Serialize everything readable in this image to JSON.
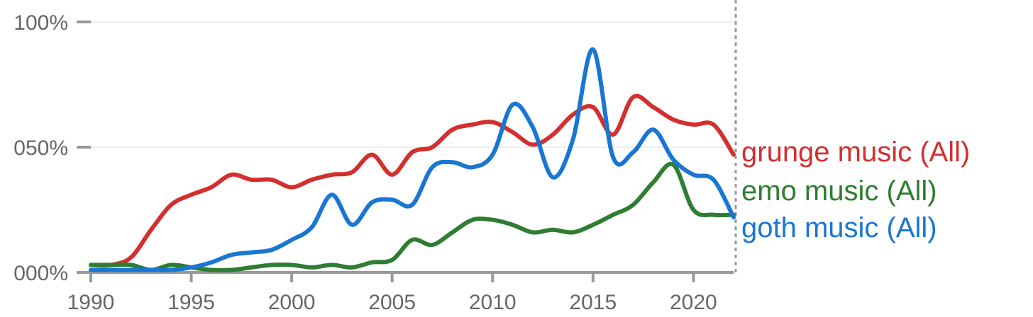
{
  "chart_data": {
    "type": "line",
    "title": "",
    "xlabel": "",
    "ylabel": "",
    "xlim": [
      1990,
      2022
    ],
    "ylim": [
      0,
      100
    ],
    "grid": true,
    "legend": "right (labels at line ends)",
    "x_ticks": [
      "1990",
      "1995",
      "2000",
      "2005",
      "2010",
      "2015",
      "2020"
    ],
    "y_ticks": [
      {
        "value": 0,
        "label": "000%"
      },
      {
        "value": 50,
        "label": "050%"
      },
      {
        "value": 100,
        "label": "100%"
      }
    ],
    "series": [
      {
        "name": "grunge music (All)",
        "color": "#d32f2f",
        "points": [
          [
            1990,
            3
          ],
          [
            1991,
            3
          ],
          [
            1992,
            6
          ],
          [
            1993,
            17
          ],
          [
            1994,
            27
          ],
          [
            1995,
            31
          ],
          [
            1996,
            34
          ],
          [
            1997,
            39
          ],
          [
            1998,
            37
          ],
          [
            1999,
            37
          ],
          [
            2000,
            34
          ],
          [
            2001,
            37
          ],
          [
            2002,
            39
          ],
          [
            2003,
            40
          ],
          [
            2004,
            47
          ],
          [
            2005,
            39
          ],
          [
            2006,
            48
          ],
          [
            2007,
            50
          ],
          [
            2008,
            57
          ],
          [
            2009,
            59
          ],
          [
            2010,
            60
          ],
          [
            2011,
            56
          ],
          [
            2012,
            51
          ],
          [
            2013,
            55
          ],
          [
            2014,
            63
          ],
          [
            2015,
            66
          ],
          [
            2016,
            55
          ],
          [
            2017,
            70
          ],
          [
            2018,
            66
          ],
          [
            2019,
            61
          ],
          [
            2020,
            59
          ],
          [
            2021,
            59
          ],
          [
            2022,
            47
          ]
        ]
      },
      {
        "name": "emo music (All)",
        "color": "#2e7d32",
        "points": [
          [
            1990,
            3
          ],
          [
            1991,
            3
          ],
          [
            1992,
            3
          ],
          [
            1993,
            1
          ],
          [
            1994,
            3
          ],
          [
            1995,
            2
          ],
          [
            1996,
            1
          ],
          [
            1997,
            1
          ],
          [
            1998,
            2
          ],
          [
            1999,
            3
          ],
          [
            2000,
            3
          ],
          [
            2001,
            2
          ],
          [
            2002,
            3
          ],
          [
            2003,
            2
          ],
          [
            2004,
            4
          ],
          [
            2005,
            5
          ],
          [
            2006,
            13
          ],
          [
            2007,
            11
          ],
          [
            2008,
            16
          ],
          [
            2009,
            21
          ],
          [
            2010,
            21
          ],
          [
            2011,
            19
          ],
          [
            2012,
            16
          ],
          [
            2013,
            17
          ],
          [
            2014,
            16
          ],
          [
            2015,
            19
          ],
          [
            2016,
            23
          ],
          [
            2017,
            27
          ],
          [
            2018,
            36
          ],
          [
            2019,
            43
          ],
          [
            2020,
            25
          ],
          [
            2021,
            23
          ],
          [
            2022,
            23
          ]
        ]
      },
      {
        "name": "goth music (All)",
        "color": "#1976d2",
        "points": [
          [
            1990,
            1
          ],
          [
            1991,
            1
          ],
          [
            1992,
            1
          ],
          [
            1993,
            1
          ],
          [
            1994,
            1
          ],
          [
            1995,
            2
          ],
          [
            1996,
            4
          ],
          [
            1997,
            7
          ],
          [
            1998,
            8
          ],
          [
            1999,
            9
          ],
          [
            2000,
            13
          ],
          [
            2001,
            18
          ],
          [
            2002,
            31
          ],
          [
            2003,
            19
          ],
          [
            2004,
            28
          ],
          [
            2005,
            29
          ],
          [
            2006,
            27
          ],
          [
            2007,
            42
          ],
          [
            2008,
            44
          ],
          [
            2009,
            42
          ],
          [
            2010,
            47
          ],
          [
            2011,
            67
          ],
          [
            2012,
            58
          ],
          [
            2013,
            38
          ],
          [
            2014,
            53
          ],
          [
            2015,
            89
          ],
          [
            2016,
            46
          ],
          [
            2017,
            48
          ],
          [
            2018,
            57
          ],
          [
            2019,
            45
          ],
          [
            2020,
            39
          ],
          [
            2021,
            37
          ],
          [
            2022,
            22
          ]
        ]
      }
    ]
  }
}
